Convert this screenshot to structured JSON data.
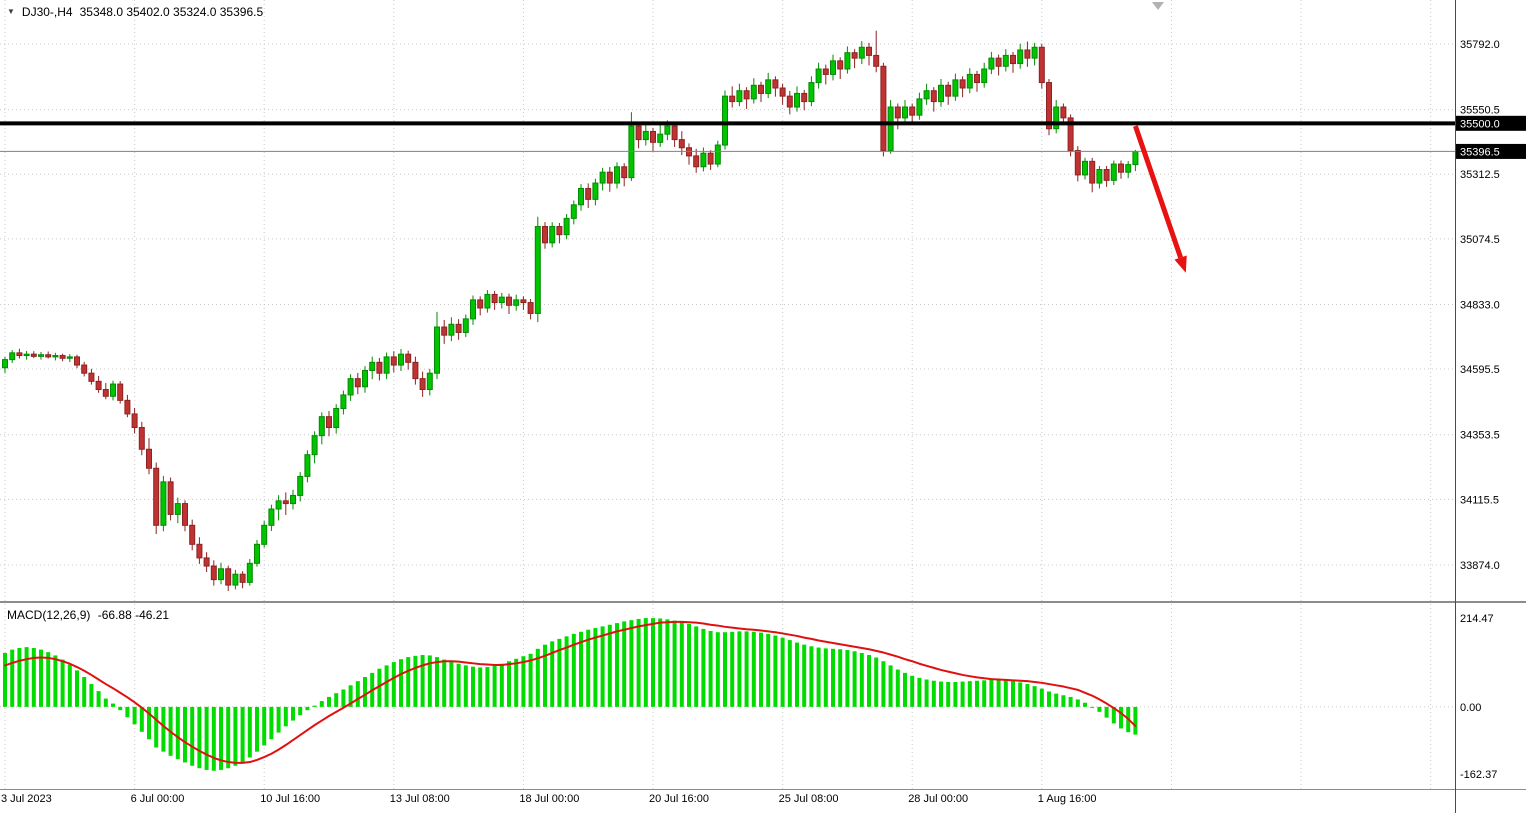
{
  "header": {
    "symbol": "DJ30-,H4",
    "quote": "35348.0 35402.0 35324.0 35396.5"
  },
  "macd_panel": {
    "label": "MACD(12,26,9)",
    "values": "-66.88 -46.21"
  },
  "colors": {
    "bull": "#00C400",
    "bull_border": "#048A04",
    "bear": "#C03333",
    "bear_border": "#8C2222",
    "macd_hist": "#00DC00",
    "signal": "#E01010",
    "hline": "#000000",
    "current_line": "#808080",
    "arrow": "#E81212",
    "grid": "#C8C8C8",
    "badge_bg": "#000000",
    "badge_text": "#FFFFFF",
    "axis_text": "#000000",
    "separator": "#8C8C8C"
  },
  "chart_data": {
    "type": "candlestick",
    "symbol": "DJ30-",
    "timeframe": "H4",
    "main": {
      "ylim": [
        33745,
        35954
      ],
      "y_axis_ticks": [
        35792.0,
        35550.5,
        35312.5,
        35074.5,
        34833.0,
        34595.5,
        34353.5,
        34115.5,
        33874.0
      ],
      "hline": {
        "price": 35500.0,
        "label": "35500.0"
      },
      "current_price": {
        "price": 35396.5,
        "label": "35396.5"
      },
      "arrow": {
        "from_bar": 157,
        "from_price": 35490,
        "to_bar": 164,
        "to_price": 34950
      },
      "ohlc": [
        [
          34600,
          34640,
          34580,
          34630
        ],
        [
          34630,
          34665,
          34618,
          34655
        ],
        [
          34655,
          34670,
          34634,
          34645
        ],
        [
          34645,
          34662,
          34630,
          34650
        ],
        [
          34650,
          34661,
          34636,
          34642
        ],
        [
          34642,
          34658,
          34630,
          34648
        ],
        [
          34648,
          34660,
          34634,
          34640
        ],
        [
          34640,
          34655,
          34627,
          34645
        ],
        [
          34645,
          34652,
          34624,
          34635
        ],
        [
          34635,
          34650,
          34621,
          34640
        ],
        [
          34640,
          34648,
          34598,
          34610
        ],
        [
          34610,
          34622,
          34568,
          34580
        ],
        [
          34580,
          34596,
          34538,
          34550
        ],
        [
          34550,
          34570,
          34508,
          34520
        ],
        [
          34520,
          34544,
          34484,
          34495
        ],
        [
          34495,
          34552,
          34480,
          34540
        ],
        [
          34540,
          34551,
          34468,
          34480
        ],
        [
          34480,
          34500,
          34418,
          34430
        ],
        [
          34430,
          34452,
          34358,
          34380
        ],
        [
          34380,
          34401,
          34278,
          34300
        ],
        [
          34300,
          34341,
          34208,
          34230
        ],
        [
          34230,
          34251,
          33988,
          34020
        ],
        [
          34020,
          34202,
          33998,
          34180
        ],
        [
          34180,
          34196,
          34038,
          34060
        ],
        [
          34060,
          34122,
          34028,
          34100
        ],
        [
          34100,
          34112,
          33998,
          34020
        ],
        [
          34020,
          34041,
          33928,
          33950
        ],
        [
          33950,
          33976,
          33878,
          33900
        ],
        [
          33900,
          33921,
          33848,
          33870
        ],
        [
          33870,
          33891,
          33798,
          33820
        ],
        [
          33820,
          33882,
          33803,
          33860
        ],
        [
          33860,
          33871,
          33778,
          33800
        ],
        [
          33800,
          33856,
          33784,
          33840
        ],
        [
          33840,
          33851,
          33788,
          33810
        ],
        [
          33810,
          33896,
          33798,
          33880
        ],
        [
          33880,
          33966,
          33868,
          33950
        ],
        [
          33950,
          34036,
          33938,
          34020
        ],
        [
          34020,
          34096,
          33999,
          34080
        ],
        [
          34080,
          34131,
          34038,
          34110
        ],
        [
          34110,
          34141,
          34058,
          34100
        ],
        [
          34100,
          34151,
          34078,
          34130
        ],
        [
          34130,
          34216,
          34108,
          34200
        ],
        [
          34200,
          34296,
          34178,
          34280
        ],
        [
          34280,
          34366,
          34248,
          34350
        ],
        [
          34350,
          34436,
          34318,
          34420
        ],
        [
          34420,
          34441,
          34348,
          34380
        ],
        [
          34380,
          34466,
          34358,
          34450
        ],
        [
          34450,
          34516,
          34428,
          34500
        ],
        [
          34500,
          34576,
          34478,
          34560
        ],
        [
          34560,
          34581,
          34503,
          34530
        ],
        [
          34530,
          34606,
          34508,
          34590
        ],
        [
          34590,
          34641,
          34558,
          34620
        ],
        [
          34620,
          34636,
          34553,
          34580
        ],
        [
          34580,
          34656,
          34558,
          34640
        ],
        [
          34640,
          34661,
          34583,
          34610
        ],
        [
          34610,
          34669,
          34588,
          34650
        ],
        [
          34650,
          34663,
          34593,
          34620
        ],
        [
          34620,
          34641,
          34538,
          34560
        ],
        [
          34560,
          34586,
          34493,
          34520
        ],
        [
          34520,
          34596,
          34498,
          34580
        ],
        [
          34580,
          34806,
          34558,
          34750
        ],
        [
          34750,
          34776,
          34688,
          34720
        ],
        [
          34720,
          34786,
          34698,
          34760
        ],
        [
          34760,
          34779,
          34703,
          34730
        ],
        [
          34730,
          34796,
          34713,
          34780
        ],
        [
          34780,
          34866,
          34758,
          34850
        ],
        [
          34850,
          34863,
          34793,
          34820
        ],
        [
          34820,
          34886,
          34803,
          34870
        ],
        [
          34870,
          34883,
          34813,
          34840
        ],
        [
          34840,
          34876,
          34818,
          34860
        ],
        [
          34860,
          34873,
          34798,
          34830
        ],
        [
          34830,
          34869,
          34810,
          34850
        ],
        [
          34850,
          34863,
          34813,
          34840
        ],
        [
          34840,
          34853,
          34778,
          34800
        ],
        [
          34800,
          35156,
          34768,
          35120
        ],
        [
          35120,
          35136,
          35038,
          35060
        ],
        [
          35060,
          35136,
          35043,
          35120
        ],
        [
          35120,
          35133,
          35058,
          35090
        ],
        [
          35090,
          35166,
          35073,
          35150
        ],
        [
          35150,
          35216,
          35128,
          35200
        ],
        [
          35200,
          35276,
          35178,
          35260
        ],
        [
          35260,
          35279,
          35188,
          35220
        ],
        [
          35220,
          35296,
          35198,
          35280
        ],
        [
          35280,
          35336,
          35253,
          35320
        ],
        [
          35320,
          35339,
          35248,
          35280
        ],
        [
          35280,
          35356,
          35260,
          35340
        ],
        [
          35340,
          35353,
          35268,
          35300
        ],
        [
          35300,
          35541,
          35288,
          35490
        ],
        [
          35490,
          35506,
          35408,
          35440
        ],
        [
          35440,
          35501,
          35418,
          35470
        ],
        [
          35470,
          35483,
          35398,
          35430
        ],
        [
          35430,
          35496,
          35413,
          35460
        ],
        [
          35460,
          35511,
          35438,
          35490
        ],
        [
          35490,
          35503,
          35413,
          35440
        ],
        [
          35440,
          35471,
          35383,
          35410
        ],
        [
          35410,
          35426,
          35348,
          35380
        ],
        [
          35380,
          35406,
          35318,
          35340
        ],
        [
          35340,
          35411,
          35323,
          35390
        ],
        [
          35390,
          35401,
          35328,
          35350
        ],
        [
          35350,
          35436,
          35338,
          35420
        ],
        [
          35420,
          35621,
          35403,
          35600
        ],
        [
          35600,
          35636,
          35558,
          35580
        ],
        [
          35580,
          35646,
          35563,
          35620
        ],
        [
          35620,
          35633,
          35553,
          35590
        ],
        [
          35590,
          35666,
          35573,
          35640
        ],
        [
          35640,
          35653,
          35578,
          35610
        ],
        [
          35610,
          35686,
          35593,
          35660
        ],
        [
          35660,
          35673,
          35598,
          35630
        ],
        [
          35630,
          35646,
          35568,
          35600
        ],
        [
          35600,
          35619,
          35533,
          35560
        ],
        [
          35560,
          35636,
          35543,
          35610
        ],
        [
          35610,
          35623,
          35548,
          35580
        ],
        [
          35580,
          35673,
          35563,
          35650
        ],
        [
          35650,
          35723,
          35628,
          35700
        ],
        [
          35700,
          35716,
          35643,
          35680
        ],
        [
          35680,
          35753,
          35658,
          35730
        ],
        [
          35730,
          35743,
          35663,
          35700
        ],
        [
          35700,
          35783,
          35683,
          35760
        ],
        [
          35760,
          35773,
          35703,
          35740
        ],
        [
          35740,
          35803,
          35718,
          35780
        ],
        [
          35780,
          35796,
          35713,
          35750
        ],
        [
          35750,
          35841,
          35688,
          35710
        ],
        [
          35710,
          35723,
          35378,
          35400
        ],
        [
          35400,
          35586,
          35388,
          35560
        ],
        [
          35560,
          35573,
          35478,
          35520
        ],
        [
          35520,
          35586,
          35498,
          35560
        ],
        [
          35560,
          35573,
          35493,
          35530
        ],
        [
          35530,
          35613,
          35513,
          35590
        ],
        [
          35590,
          35646,
          35568,
          35620
        ],
        [
          35620,
          35633,
          35543,
          35580
        ],
        [
          35580,
          35663,
          35561,
          35640
        ],
        [
          35640,
          35653,
          35568,
          35600
        ],
        [
          35600,
          35683,
          35583,
          35660
        ],
        [
          35660,
          35673,
          35596,
          35630
        ],
        [
          35630,
          35703,
          35611,
          35680
        ],
        [
          35680,
          35693,
          35616,
          35650
        ],
        [
          35650,
          35723,
          35631,
          35700
        ],
        [
          35700,
          35763,
          35681,
          35740
        ],
        [
          35740,
          35753,
          35676,
          35710
        ],
        [
          35710,
          35773,
          35691,
          35750
        ],
        [
          35750,
          35763,
          35686,
          35720
        ],
        [
          35720,
          35793,
          35701,
          35770
        ],
        [
          35770,
          35801,
          35708,
          35740
        ],
        [
          35740,
          35796,
          35713,
          35780
        ],
        [
          35780,
          35793,
          35628,
          35650
        ],
        [
          35650,
          35663,
          35456,
          35480
        ],
        [
          35480,
          35586,
          35463,
          35560
        ],
        [
          35560,
          35573,
          35493,
          35520
        ],
        [
          35520,
          35533,
          35378,
          35400
        ],
        [
          35400,
          35416,
          35286,
          35310
        ],
        [
          35310,
          35373,
          35293,
          35360
        ],
        [
          35360,
          35373,
          35246,
          35280
        ],
        [
          35280,
          35343,
          35260,
          35330
        ],
        [
          35330,
          35343,
          35266,
          35290
        ],
        [
          35290,
          35363,
          35273,
          35350
        ],
        [
          35350,
          35363,
          35296,
          35320
        ],
        [
          35320,
          35361,
          35298,
          35348
        ],
        [
          35348,
          35402,
          35324,
          35396.5
        ]
      ]
    },
    "x_axis": {
      "labels": [
        "3 Jul 2023",
        "6 Jul 00:00",
        "10 Jul 16:00",
        "13 Jul 08:00",
        "18 Jul 00:00",
        "20 Jul 16:00",
        "25 Jul 08:00",
        "28 Jul 00:00",
        "1 Aug 16:00"
      ],
      "label_every_n_bars": 18
    },
    "macd": {
      "name": "MACD(12,26,9)",
      "macd_value": -66.88,
      "signal_value": -46.21,
      "ylim": [
        -198,
        248
      ],
      "y_axis_ticks": [
        214.47,
        0.0,
        -162.37
      ],
      "histogram": [
        130,
        138,
        142,
        144,
        142,
        138,
        132,
        124,
        114,
        102,
        88,
        72,
        55,
        38,
        20,
        8,
        -8,
        -25,
        -42,
        -60,
        -78,
        -98,
        -108,
        -118,
        -126,
        -134,
        -142,
        -148,
        -152,
        -154,
        -152,
        -148,
        -142,
        -133,
        -122,
        -108,
        -93,
        -78,
        -62,
        -47,
        -33,
        -20,
        -8,
        3,
        14,
        24,
        33,
        42,
        52,
        62,
        72,
        82,
        92,
        100,
        108,
        115,
        120,
        123,
        125,
        124,
        120,
        114,
        108,
        104,
        100,
        97,
        95,
        96,
        99,
        104,
        110,
        116,
        122,
        128,
        140,
        150,
        158,
        164,
        170,
        176,
        181,
        186,
        190,
        194,
        198,
        202,
        206,
        209,
        212,
        214,
        214,
        213,
        211,
        208,
        205,
        200,
        194,
        188,
        183,
        180,
        180,
        181,
        182,
        182,
        181,
        179,
        176,
        172,
        167,
        161,
        155,
        150,
        146,
        143,
        141,
        140,
        139,
        137,
        134,
        130,
        125,
        119,
        110,
        100,
        90,
        82,
        75,
        70,
        66,
        63,
        61,
        60,
        60,
        61,
        62,
        63,
        64,
        65,
        65,
        64,
        62,
        59,
        55,
        50,
        44,
        37,
        32,
        28,
        24,
        18,
        10,
        0,
        -12,
        -26,
        -40,
        -52,
        -61,
        -66.88
      ],
      "signal": [
        100,
        106,
        111,
        115,
        118,
        119,
        118,
        115,
        110,
        104,
        96,
        87,
        77,
        66,
        55,
        45,
        34,
        23,
        11,
        -2,
        -16,
        -31,
        -46,
        -60,
        -73,
        -85,
        -96,
        -106,
        -115,
        -123,
        -129,
        -133,
        -135,
        -135,
        -133,
        -128,
        -121,
        -113,
        -103,
        -92,
        -80,
        -68,
        -56,
        -44,
        -33,
        -22,
        -12,
        -2,
        8,
        19,
        29,
        40,
        50,
        60,
        70,
        79,
        87,
        94,
        100,
        105,
        108,
        110,
        110,
        109,
        107,
        105,
        103,
        102,
        101,
        101,
        103,
        105,
        108,
        112,
        117,
        123,
        130,
        137,
        143,
        150,
        156,
        162,
        167,
        172,
        177,
        182,
        186,
        190,
        194,
        197,
        200,
        203,
        204,
        205,
        205,
        204,
        203,
        201,
        198,
        196,
        193,
        191,
        189,
        187,
        186,
        184,
        182,
        180,
        177,
        174,
        171,
        167,
        164,
        160,
        157,
        154,
        151,
        148,
        145,
        142,
        139,
        135,
        131,
        126,
        121,
        115,
        110,
        104,
        99,
        94,
        89,
        85,
        81,
        77,
        74,
        71,
        69,
        67,
        66,
        65,
        64,
        63,
        62,
        60,
        58,
        55,
        52,
        49,
        45,
        41,
        34,
        27,
        18,
        8,
        -3,
        -15,
        -29,
        -46.21
      ]
    }
  }
}
